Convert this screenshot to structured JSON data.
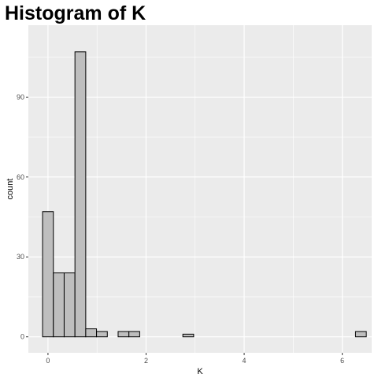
{
  "chart_data": {
    "type": "bar",
    "title": "Histogram of K",
    "xlabel": "K",
    "ylabel": "count",
    "xlim": [
      -0.4,
      6.6
    ],
    "ylim": [
      -6,
      117
    ],
    "x_ticks": [
      0,
      2,
      4,
      6
    ],
    "y_ticks": [
      0,
      30,
      60,
      90
    ],
    "bin_width": 0.22,
    "bars": [
      {
        "x": 0.0,
        "count": 47
      },
      {
        "x": 0.22,
        "count": 24
      },
      {
        "x": 0.44,
        "count": 24
      },
      {
        "x": 0.66,
        "count": 107
      },
      {
        "x": 0.88,
        "count": 3
      },
      {
        "x": 1.1,
        "count": 2
      },
      {
        "x": 1.32,
        "count": 0
      },
      {
        "x": 1.54,
        "count": 2
      },
      {
        "x": 1.76,
        "count": 2
      },
      {
        "x": 1.98,
        "count": 0
      },
      {
        "x": 2.2,
        "count": 0
      },
      {
        "x": 2.42,
        "count": 0
      },
      {
        "x": 2.64,
        "count": 0
      },
      {
        "x": 2.86,
        "count": 1
      },
      {
        "x": 3.08,
        "count": 0
      },
      {
        "x": 3.3,
        "count": 0
      },
      {
        "x": 3.52,
        "count": 0
      },
      {
        "x": 3.74,
        "count": 0
      },
      {
        "x": 3.96,
        "count": 0
      },
      {
        "x": 4.18,
        "count": 0
      },
      {
        "x": 4.4,
        "count": 0
      },
      {
        "x": 4.62,
        "count": 0
      },
      {
        "x": 4.84,
        "count": 0
      },
      {
        "x": 5.06,
        "count": 0
      },
      {
        "x": 5.28,
        "count": 0
      },
      {
        "x": 5.5,
        "count": 0
      },
      {
        "x": 5.72,
        "count": 0
      },
      {
        "x": 5.94,
        "count": 0
      },
      {
        "x": 6.16,
        "count": 0
      },
      {
        "x": 6.38,
        "count": 2
      }
    ],
    "grid": true,
    "colors": {
      "panel": "#ebebeb",
      "grid": "#ffffff",
      "bar_fill": "#bebebe",
      "bar_stroke": "#000000"
    }
  }
}
